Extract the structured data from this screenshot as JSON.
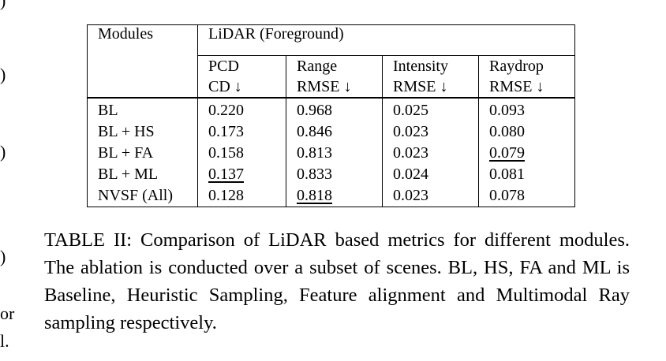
{
  "left_margin_fragments": [
    ")",
    ")",
    ")",
    ")",
    "or",
    "l."
  ],
  "table": {
    "group_header": "LiDAR (Foreground)",
    "modules_header": "Modules",
    "columns": [
      {
        "line1": "PCD",
        "line2": "CD ↓"
      },
      {
        "line1": "Range",
        "line2": "RMSE ↓"
      },
      {
        "line1": "Intensity",
        "line2": "RMSE ↓"
      },
      {
        "line1": "Raydrop",
        "line2": "RMSE ↓"
      }
    ],
    "rows": [
      {
        "module": "BL",
        "values": [
          "0.220",
          "0.968",
          "0.025",
          "0.093"
        ]
      },
      {
        "module": "BL + HS",
        "values": [
          "0.173",
          "0.846",
          "0.023",
          "0.080"
        ]
      },
      {
        "module": "BL + FA",
        "values": [
          "0.158",
          "0.813",
          "0.023",
          "0.079"
        ]
      },
      {
        "module": "BL + ML",
        "values": [
          "0.137",
          "0.833",
          "0.024",
          "0.081"
        ]
      },
      {
        "module": "NVSF (All)",
        "values": [
          "0.128",
          "0.818",
          "0.023",
          "0.078"
        ]
      }
    ],
    "emphasis": {
      "bold": [
        [
          2,
          1
        ],
        [
          4,
          0
        ],
        [
          4,
          2
        ],
        [
          4,
          3
        ]
      ],
      "underline": [
        [
          2,
          3
        ],
        [
          3,
          0
        ],
        [
          4,
          1
        ]
      ]
    }
  },
  "caption": "TABLE II: Comparison of LiDAR based metrics for different modules. The ablation is conducted over a subset of scenes. BL, HS, FA and ML is Baseline, Heuristic Sampling, Feature alignment and Multimodal Ray sampling respectively."
}
